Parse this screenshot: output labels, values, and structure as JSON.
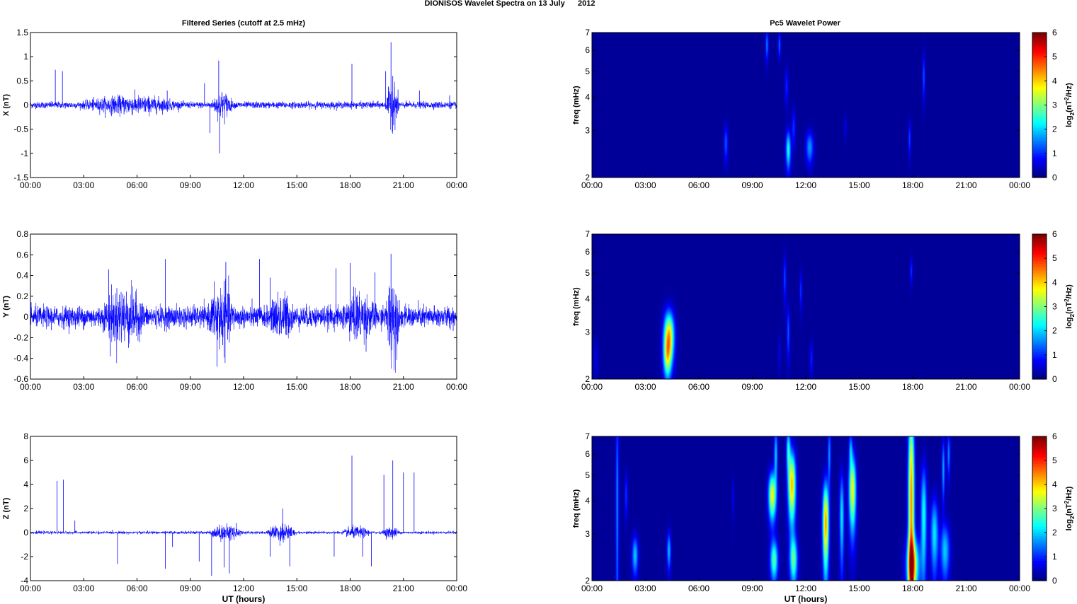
{
  "figure": {
    "suptitle": "DIONISOS Wavelet Spectra on 13 July      2012",
    "left_title": "Filtered Series (cutoff at 2.5 mHz)",
    "right_title": "Pc5 Wavelet Power",
    "xlabel": "UT (hours)"
  },
  "chart_data": [
    {
      "type": "line",
      "title": "Filtered Series (cutoff at 2.5 mHz)",
      "ylabel": "X (nT)",
      "x_ticks": [
        "00:00",
        "03:00",
        "06:00",
        "09:00",
        "12:00",
        "15:00",
        "18:00",
        "21:00",
        "00:00"
      ],
      "xlim_hours": [
        0,
        24
      ],
      "ylim": [
        -1.5,
        1.5
      ],
      "y_ticks": [
        "1.5",
        "1",
        "0.5",
        "0",
        "-0.5",
        "-1",
        "-1.5"
      ],
      "y_tick_values": [
        1.5,
        1,
        0.5,
        0,
        -0.5,
        -1,
        -1.5
      ],
      "color": "#0000ff",
      "noise_amplitude": 0.06,
      "active_intervals": [
        [
          2.8,
          8.5,
          0.12
        ],
        [
          10.2,
          11.4,
          0.2
        ],
        [
          20.0,
          20.8,
          0.35
        ]
      ],
      "spikes": [
        [
          1.4,
          0.73
        ],
        [
          1.8,
          0.7
        ],
        [
          7.7,
          0.3
        ],
        [
          9.8,
          0.45
        ],
        [
          10.1,
          -0.58
        ],
        [
          10.6,
          0.92
        ],
        [
          10.65,
          -1.0
        ],
        [
          18.1,
          0.85
        ],
        [
          20.3,
          1.3
        ],
        [
          20.4,
          0.6
        ],
        [
          20.0,
          0.7
        ],
        [
          21.9,
          0.3
        ],
        [
          23.6,
          0.2
        ]
      ]
    },
    {
      "type": "line",
      "ylabel": "Y (nT)",
      "x_ticks": [
        "00:00",
        "03:00",
        "06:00",
        "09:00",
        "12:00",
        "15:00",
        "18:00",
        "21:00",
        "00:00"
      ],
      "xlim_hours": [
        0,
        24
      ],
      "ylim": [
        -0.6,
        0.8
      ],
      "y_ticks": [
        "0.8",
        "0.6",
        "0.4",
        "0.2",
        "0",
        "-0.2",
        "-0.4",
        "-0.6"
      ],
      "y_tick_values": [
        0.8,
        0.6,
        0.4,
        0.2,
        0,
        -0.2,
        -0.4,
        -0.6
      ],
      "color": "#0000ff",
      "noise_amplitude": 0.09,
      "active_intervals": [
        [
          4.0,
          6.5,
          0.17
        ],
        [
          10.0,
          11.5,
          0.2
        ],
        [
          13.5,
          14.8,
          0.13
        ],
        [
          17.5,
          19.5,
          0.13
        ],
        [
          20.0,
          20.8,
          0.32
        ]
      ],
      "spikes": [
        [
          4.4,
          0.46
        ],
        [
          4.5,
          -0.38
        ],
        [
          7.6,
          0.56
        ],
        [
          10.5,
          -0.48
        ],
        [
          11.0,
          0.53
        ],
        [
          12.9,
          0.56
        ],
        [
          13.5,
          0.38
        ],
        [
          17.2,
          0.47
        ],
        [
          18.0,
          0.52
        ],
        [
          20.3,
          0.61
        ],
        [
          19.4,
          0.43
        ]
      ]
    },
    {
      "type": "line",
      "ylabel": "Z (nT)",
      "xlabel": "UT (hours)",
      "x_ticks": [
        "00:00",
        "03:00",
        "06:00",
        "09:00",
        "12:00",
        "15:00",
        "18:00",
        "21:00",
        "00:00"
      ],
      "xlim_hours": [
        0,
        24
      ],
      "ylim": [
        -4,
        8
      ],
      "y_ticks": [
        "8",
        "6",
        "4",
        "2",
        "0",
        "-2",
        "-4"
      ],
      "y_tick_values": [
        8,
        6,
        4,
        2,
        0,
        -2,
        -4
      ],
      "color": "#0000ff",
      "noise_amplitude": 0.1,
      "active_intervals": [
        [
          10.0,
          12.0,
          0.5
        ],
        [
          13.3,
          15.0,
          0.6
        ],
        [
          17.5,
          19.2,
          0.35
        ],
        [
          19.8,
          20.8,
          0.35
        ]
      ],
      "spikes": [
        [
          1.5,
          4.3
        ],
        [
          1.85,
          4.4
        ],
        [
          2.5,
          1.0
        ],
        [
          4.9,
          -2.6
        ],
        [
          7.6,
          -3.0
        ],
        [
          8.0,
          -1.2
        ],
        [
          9.5,
          -2.4
        ],
        [
          10.2,
          -3.6
        ],
        [
          10.9,
          -2.9
        ],
        [
          11.2,
          -3.4
        ],
        [
          11.6,
          0.8
        ],
        [
          13.5,
          -2.0
        ],
        [
          14.2,
          2.0
        ],
        [
          14.6,
          -2.8
        ],
        [
          17.1,
          -2.0
        ],
        [
          18.1,
          6.4
        ],
        [
          18.7,
          -2.0
        ],
        [
          19.2,
          -2.8
        ],
        [
          19.9,
          4.8
        ],
        [
          20.4,
          6.0
        ],
        [
          21.0,
          5.0
        ],
        [
          21.6,
          5.0
        ]
      ]
    },
    {
      "type": "heatmap",
      "title": "Pc5 Wavelet Power",
      "ylabel": "freq (mHz)",
      "x_ticks": [
        "00:00",
        "03:00",
        "06:00",
        "09:00",
        "12:00",
        "15:00",
        "18:00",
        "21:00",
        "00:00"
      ],
      "xlim_hours": [
        0,
        24
      ],
      "ylim_mhz": [
        2,
        7
      ],
      "y_ticks": [
        "7",
        "6",
        "5",
        "4",
        "3",
        "2"
      ],
      "y_tick_values": [
        7,
        6,
        5,
        4,
        3,
        2
      ],
      "y_scale": "log",
      "colorbar": {
        "label_prefix": "log",
        "label_sub": "2",
        "label_mid": "(nT",
        "label_sup": "2",
        "label_suffix": "/Hz)",
        "ticks": [
          "6",
          "5",
          "4",
          "3",
          "2",
          "1",
          "0"
        ],
        "range": [
          0,
          6
        ],
        "colormap": "jet"
      },
      "blobs": [
        {
          "t": 9.8,
          "f": 6.3,
          "power": 1.3,
          "dt": 0.06,
          "df": 0.6
        },
        {
          "t": 10.5,
          "f": 6.3,
          "power": 1.2,
          "dt": 0.05,
          "df": 0.5
        },
        {
          "t": 10.9,
          "f": 4.4,
          "power": 0.8,
          "dt": 0.07,
          "df": 0.5
        },
        {
          "t": 11.0,
          "f": 2.55,
          "power": 2.2,
          "dt": 0.1,
          "df": 0.3
        },
        {
          "t": 11.3,
          "f": 3.1,
          "power": 0.9,
          "dt": 0.07,
          "df": 0.35
        },
        {
          "t": 12.2,
          "f": 2.6,
          "power": 1.5,
          "dt": 0.15,
          "df": 0.25
        },
        {
          "t": 7.5,
          "f": 2.7,
          "power": 1.1,
          "dt": 0.08,
          "df": 0.3
        },
        {
          "t": 14.2,
          "f": 3.1,
          "power": 0.5,
          "dt": 0.05,
          "df": 0.25
        },
        {
          "t": 17.8,
          "f": 2.8,
          "power": 1.0,
          "dt": 0.05,
          "df": 0.3
        },
        {
          "t": 18.6,
          "f": 4.8,
          "power": 1.1,
          "dt": 0.05,
          "df": 0.7
        }
      ]
    },
    {
      "type": "heatmap",
      "ylabel": "freq (mHz)",
      "x_ticks": [
        "00:00",
        "03:00",
        "06:00",
        "09:00",
        "12:00",
        "15:00",
        "18:00",
        "21:00",
        "00:00"
      ],
      "xlim_hours": [
        0,
        24
      ],
      "ylim_mhz": [
        2,
        7
      ],
      "y_ticks": [
        "7",
        "6",
        "5",
        "4",
        "3",
        "2"
      ],
      "y_tick_values": [
        7,
        6,
        5,
        4,
        3,
        2
      ],
      "y_scale": "log",
      "colorbar": {
        "label_prefix": "log",
        "label_sub": "2",
        "label_mid": "(nT",
        "label_sup": "2",
        "label_suffix": "/Hz)",
        "ticks": [
          "6",
          "5",
          "4",
          "3",
          "2",
          "1",
          "0"
        ],
        "range": [
          0,
          6
        ],
        "colormap": "jet"
      },
      "blobs": [
        {
          "t": 4.3,
          "f": 2.9,
          "power": 4.0,
          "dt": 0.2,
          "df": 0.45
        },
        {
          "t": 4.2,
          "f": 2.4,
          "power": 2.0,
          "dt": 0.15,
          "df": 0.3
        },
        {
          "t": 0.2,
          "f": 2.4,
          "power": 0.4,
          "dt": 0.1,
          "df": 0.3
        },
        {
          "t": 10.8,
          "f": 4.8,
          "power": 1.0,
          "dt": 0.06,
          "df": 0.7
        },
        {
          "t": 11.0,
          "f": 3.0,
          "power": 1.1,
          "dt": 0.06,
          "df": 0.5
        },
        {
          "t": 11.7,
          "f": 4.3,
          "power": 0.9,
          "dt": 0.05,
          "df": 0.5
        },
        {
          "t": 12.3,
          "f": 2.4,
          "power": 0.8,
          "dt": 0.06,
          "df": 0.25
        },
        {
          "t": 10.5,
          "f": 2.5,
          "power": 0.5,
          "dt": 0.05,
          "df": 0.3
        },
        {
          "t": 17.9,
          "f": 5.1,
          "power": 0.9,
          "dt": 0.05,
          "df": 0.4
        }
      ]
    },
    {
      "type": "heatmap",
      "ylabel": "freq (mHz)",
      "xlabel": "UT (hours)",
      "x_ticks": [
        "00:00",
        "03:00",
        "06:00",
        "09:00",
        "12:00",
        "15:00",
        "18:00",
        "21:00",
        "00:00"
      ],
      "xlim_hours": [
        0,
        24
      ],
      "ylim_mhz": [
        2,
        7
      ],
      "y_ticks": [
        "7",
        "6",
        "5",
        "4",
        "3",
        "2"
      ],
      "y_tick_values": [
        7,
        6,
        5,
        4,
        3,
        2
      ],
      "y_scale": "log",
      "colorbar": {
        "label_prefix": "log",
        "label_sub": "2",
        "label_mid": "(nT",
        "label_sup": "2",
        "label_suffix": "/Hz)",
        "ticks": [
          "6",
          "5",
          "4",
          "3",
          "2",
          "1",
          "0"
        ],
        "range": [
          0,
          6
        ],
        "colormap": "jet"
      },
      "blobs": [
        {
          "t": 1.4,
          "f": 4.0,
          "power": 1.4,
          "dt": 0.06,
          "df": 3.0
        },
        {
          "t": 2.4,
          "f": 2.5,
          "power": 1.8,
          "dt": 0.12,
          "df": 0.3
        },
        {
          "t": 1.9,
          "f": 4.2,
          "power": 0.9,
          "dt": 0.06,
          "df": 0.6
        },
        {
          "t": 4.3,
          "f": 2.6,
          "power": 1.7,
          "dt": 0.08,
          "df": 0.3
        },
        {
          "t": 10.1,
          "f": 4.2,
          "power": 3.6,
          "dt": 0.15,
          "df": 0.6
        },
        {
          "t": 10.2,
          "f": 2.4,
          "power": 2.6,
          "dt": 0.15,
          "df": 0.3
        },
        {
          "t": 10.3,
          "f": 6.0,
          "power": 1.8,
          "dt": 0.07,
          "df": 1.0
        },
        {
          "t": 11.2,
          "f": 4.6,
          "power": 4.0,
          "dt": 0.15,
          "df": 1.0
        },
        {
          "t": 11.3,
          "f": 2.4,
          "power": 2.5,
          "dt": 0.15,
          "df": 0.35
        },
        {
          "t": 11.0,
          "f": 6.3,
          "power": 2.0,
          "dt": 0.08,
          "df": 0.8
        },
        {
          "t": 13.1,
          "f": 3.3,
          "power": 4.2,
          "dt": 0.12,
          "df": 0.9
        },
        {
          "t": 13.3,
          "f": 6.0,
          "power": 1.5,
          "dt": 0.06,
          "df": 1.0
        },
        {
          "t": 14.0,
          "f": 3.5,
          "power": 2.0,
          "dt": 0.09,
          "df": 1.0
        },
        {
          "t": 14.6,
          "f": 4.4,
          "power": 3.6,
          "dt": 0.14,
          "df": 1.0
        },
        {
          "t": 14.5,
          "f": 6.3,
          "power": 1.4,
          "dt": 0.07,
          "df": 0.6
        },
        {
          "t": 17.9,
          "f": 4.0,
          "power": 4.3,
          "dt": 0.12,
          "df": 3.0
        },
        {
          "t": 18.0,
          "f": 2.3,
          "power": 3.3,
          "dt": 0.25,
          "df": 0.4
        },
        {
          "t": 18.6,
          "f": 3.5,
          "power": 2.2,
          "dt": 0.12,
          "df": 1.2
        },
        {
          "t": 19.2,
          "f": 3.0,
          "power": 2.0,
          "dt": 0.15,
          "df": 0.7
        },
        {
          "t": 19.8,
          "f": 2.6,
          "power": 1.8,
          "dt": 0.18,
          "df": 0.45
        },
        {
          "t": 19.7,
          "f": 5.3,
          "power": 1.6,
          "dt": 0.06,
          "df": 1.0
        },
        {
          "t": 20.0,
          "f": 6.0,
          "power": 1.4,
          "dt": 0.06,
          "df": 0.8
        },
        {
          "t": 7.9,
          "f": 4.1,
          "power": 0.5,
          "dt": 0.05,
          "df": 0.5
        }
      ]
    }
  ]
}
